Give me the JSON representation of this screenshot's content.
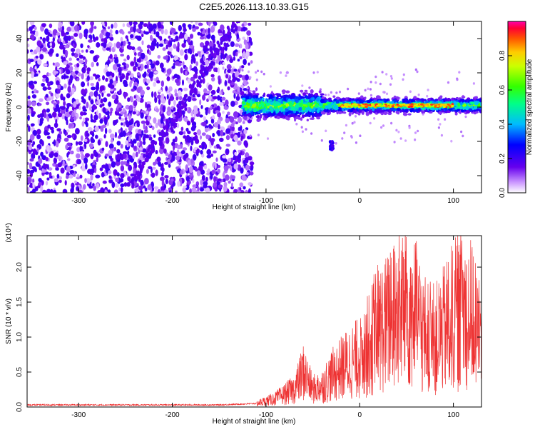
{
  "title": "C2E5.2026.113.10.33.G15",
  "chart_data": [
    {
      "type": "heatmap",
      "xlabel": "Height of straight line (km)",
      "ylabel": "Frequency (Hz)",
      "xlim": [
        -355,
        130
      ],
      "ylim": [
        -50,
        50
      ],
      "xticks": [
        -300,
        -200,
        -100,
        0,
        100
      ],
      "yticks": [
        -40,
        -20,
        0,
        20,
        40
      ],
      "colorbar": {
        "label": "Normalized spectral amplitude",
        "range": [
          0.0,
          1.0
        ],
        "ticks": [
          "0.0",
          "0.2",
          "0.4",
          "0.6",
          "0.8"
        ]
      },
      "regions": [
        {
          "name": "noise",
          "x_range": [
            -355,
            -115
          ],
          "freq_range": [
            -50,
            50
          ],
          "amplitude": 0.15
        },
        {
          "name": "signal-band",
          "x_range": [
            -125,
            130
          ],
          "freq_range": [
            -6,
            7
          ],
          "amplitude": 0.55
        },
        {
          "name": "peak-ridge",
          "x_range": [
            -20,
            100
          ],
          "freq_center": 1,
          "amplitude": 0.95
        }
      ]
    },
    {
      "type": "line",
      "ylabel": "SNR (10 * v/v)",
      "y_exponent": "(x10⁴)",
      "xlabel": "Height of straight line (km)",
      "xlim": [
        -355,
        130
      ],
      "ylim": [
        0,
        2.45
      ],
      "xticks": [
        -300,
        -200,
        -100,
        0,
        100
      ],
      "yticks": [
        "0.0",
        "0.5",
        "1.0",
        "1.5",
        "2.0"
      ],
      "series_color": "#ee3333",
      "envelope": {
        "x": [
          -355,
          -150,
          -110,
          -90,
          -70,
          -60,
          -50,
          -40,
          -30,
          -20,
          -10,
          0,
          10,
          20,
          30,
          40,
          50,
          60,
          70,
          80,
          90,
          100,
          110,
          120,
          130
        ],
        "y": [
          0.03,
          0.03,
          0.05,
          0.12,
          0.25,
          0.5,
          0.25,
          0.3,
          0.45,
          0.55,
          0.65,
          0.7,
          0.9,
          1.1,
          1.2,
          1.35,
          1.45,
          1.3,
          1.0,
          0.95,
          1.1,
          1.3,
          1.4,
          1.3,
          1.0
        ]
      }
    }
  ]
}
